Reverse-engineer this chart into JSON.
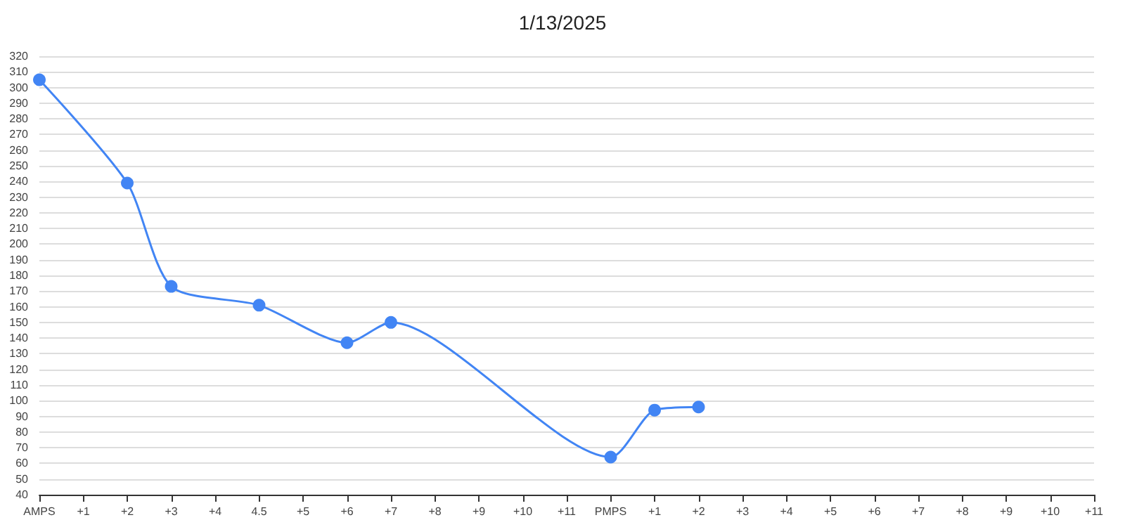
{
  "chart_data": {
    "type": "line",
    "title": "1/13/2025",
    "categories": [
      "AMPS",
      "+1",
      "+2",
      "+3",
      "+4",
      "4.5",
      "+5",
      "+6",
      "+7",
      "+8",
      "+9",
      "+10",
      "+11",
      "PMPS",
      "+1",
      "+2",
      "+3",
      "+4",
      "+5",
      "+6",
      "+7",
      "+8",
      "+9",
      "+10",
      "+11"
    ],
    "series": [
      {
        "color": "#4285f4",
        "values": [
          305,
          null,
          239,
          173,
          null,
          161,
          null,
          137,
          150,
          null,
          null,
          null,
          null,
          64,
          94,
          96,
          null,
          null,
          null,
          null,
          null,
          null,
          null,
          null,
          null
        ]
      }
    ],
    "ylim": [
      40,
      320
    ],
    "yticks": [
      40,
      50,
      60,
      70,
      80,
      90,
      100,
      110,
      120,
      130,
      140,
      150,
      160,
      170,
      180,
      190,
      200,
      210,
      220,
      230,
      240,
      250,
      260,
      270,
      280,
      290,
      300,
      310,
      320
    ],
    "grid": "y",
    "marker": "circle",
    "line_style": "solid"
  }
}
